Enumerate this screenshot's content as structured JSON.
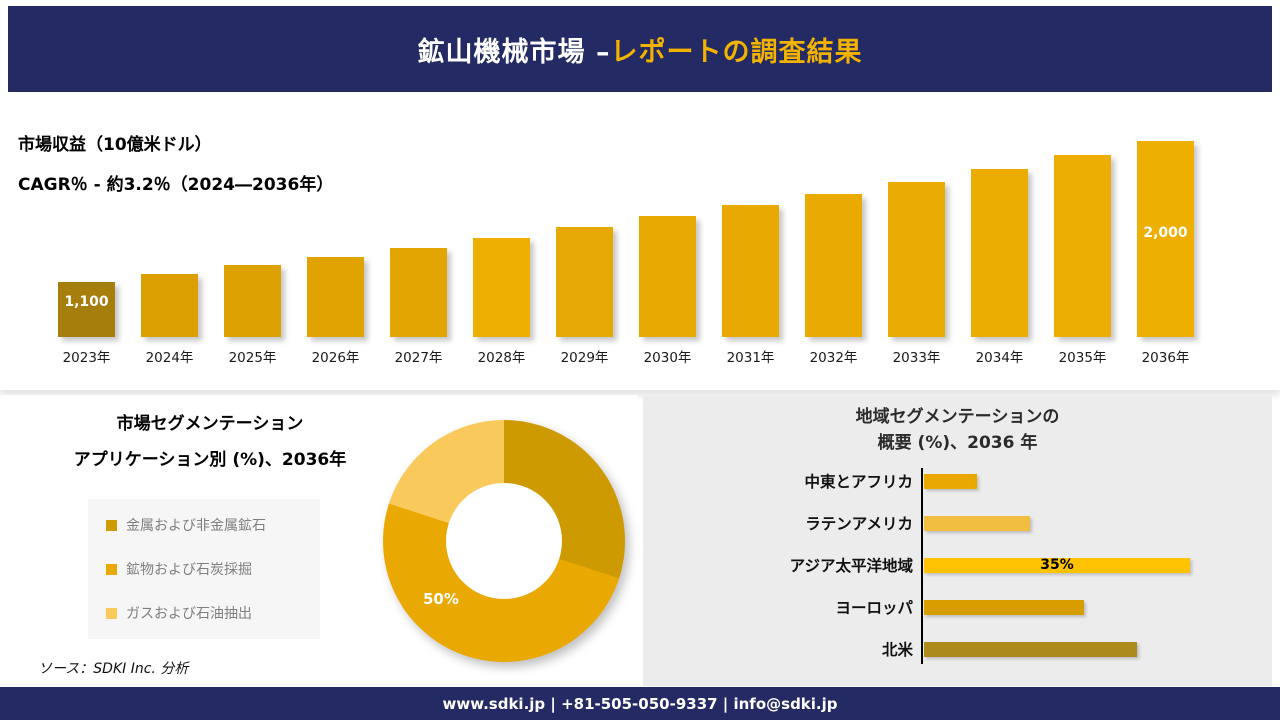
{
  "colors": {
    "navy": "#242a63",
    "accent_gold": "#f2b200",
    "panel_gray": "#ececec"
  },
  "header": {
    "title_white": "鉱山機械市場 –",
    "title_gold": "レポートの調査結果"
  },
  "revenue": {
    "metric_label": "市場収益（10億米ドル）",
    "cagr_label": "CAGR％ - 約3.2％（2024―2036年）"
  },
  "segmentation": {
    "title_line1": "市場セグメンテーション",
    "title_line2": "アプリケーション別 (%)、2036年",
    "source": "ソース：SDKI Inc. 分析"
  },
  "regional": {
    "title_line1": "地域セグメンテーションの",
    "title_line2": "概要 (%)、2036 年"
  },
  "footer": {
    "contact": "www.sdki.jp | +81-505-050-9337 | info@sdki.jp"
  },
  "chart_data": [
    {
      "type": "bar",
      "title": "市場収益（10億米ドル）",
      "subtitle": "CAGR％ - 約3.2％（2024―2036年）",
      "categories": [
        "2023年",
        "2024年",
        "2025年",
        "2026年",
        "2027年",
        "2028年",
        "2029年",
        "2030年",
        "2031年",
        "2032年",
        "2033年",
        "2034年",
        "2035年",
        "2036年"
      ],
      "values": [
        1100,
        1150,
        1210,
        1260,
        1320,
        1380,
        1450,
        1520,
        1590,
        1660,
        1740,
        1820,
        1910,
        2000
      ],
      "colors": [
        "#A57E0B",
        "#DC9F02",
        "#DEA102",
        "#E0A302",
        "#E3A502",
        "#EFAF02",
        "#E6A802",
        "#E7A902",
        "#E8AA02",
        "#E9AB02",
        "#EAAC02",
        "#EBAD02",
        "#ECAE02",
        "#EDAF02"
      ],
      "first_label": "1,100",
      "last_label": "2,000",
      "xlabel": "",
      "ylabel": "市場収益（10億米ドル）",
      "grid": false,
      "legend": false
    },
    {
      "type": "pie",
      "donut": true,
      "title": "市場セグメンテーション アプリケーション別 (%)、2036年",
      "labels": [
        "金属および非金属鉱石",
        "鉱物および石炭採掘",
        "ガスおよび石油抽出"
      ],
      "values": [
        30,
        50,
        20
      ],
      "colors": [
        "#CE9A02",
        "#E9A902",
        "#F9C95C"
      ],
      "shown_label": "50%",
      "shown_label_slice": 1,
      "legend_position": "left"
    },
    {
      "type": "bar",
      "orientation": "horizontal",
      "title": "地域セグメンテーションの 概要 (%)、2036 年",
      "categories": [
        "中東とアフリカ",
        "ラテンアメリカ",
        "アジア太平洋地域",
        "ヨーロッパ",
        "北米"
      ],
      "values": [
        7,
        14,
        35,
        21,
        28
      ],
      "colors": [
        "#E8A800",
        "#F2BE42",
        "#FFC303",
        "#D89E00",
        "#AD8A1C"
      ],
      "data_label_index": 2,
      "data_label_text": "35%",
      "grid": false,
      "legend": false
    }
  ]
}
